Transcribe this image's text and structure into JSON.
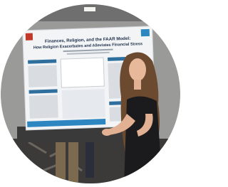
{
  "poster": {
    "title": "Finances, Religion, and the FAAR Model:",
    "subtitle": "How Religion Exacerbates and Alleviates Financial Stress"
  }
}
